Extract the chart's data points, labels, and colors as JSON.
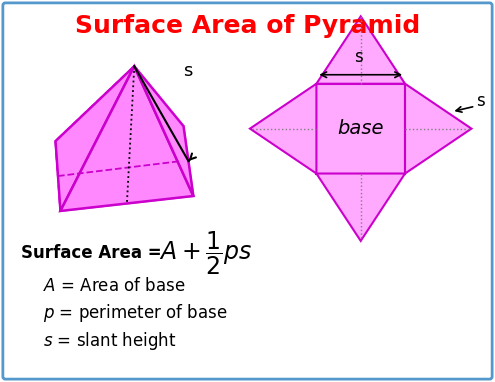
{
  "title": "Surface Area of Pyramid",
  "title_color": "#FF0000",
  "title_fontsize": 18,
  "bg_color": "#FFFFFF",
  "border_color": "#5599CC",
  "pyramid_fill": "#FF88FF",
  "pyramid_edge": "#CC00CC",
  "net_fill": "#FFAAFF",
  "net_edge": "#CC00CC",
  "formula_text": "Surface Area = ",
  "def1_italic": "A",
  "def1_rest": " = Area of base",
  "def2_italic": "p",
  "def2_rest": " = perimeter of base",
  "def3_italic": "s",
  "def3_rest": " = slant height",
  "label_s": "s",
  "label_base": "base"
}
